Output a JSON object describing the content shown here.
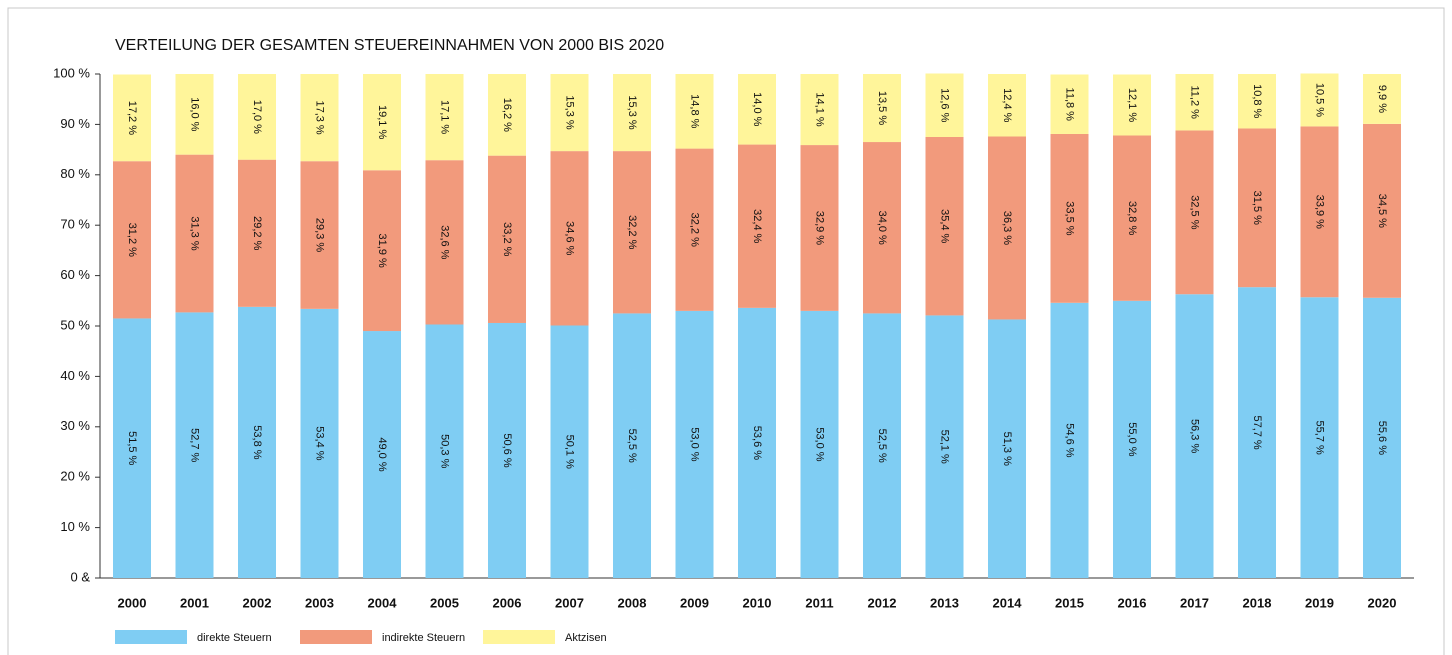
{
  "chart_data": {
    "type": "bar",
    "stacked": true,
    "title": "VERTEILUNG DER GESAMTEN STEUEREINNAHMEN VON 2000 BIS 2020",
    "categories": [
      "2000",
      "2001",
      "2002",
      "2003",
      "2004",
      "2005",
      "2006",
      "2007",
      "2008",
      "2009",
      "2010",
      "2011",
      "2012",
      "2013",
      "2014",
      "2015",
      "2016",
      "2017",
      "2018",
      "2019",
      "2020"
    ],
    "series": [
      {
        "name": "direkte Steuern",
        "color": "#7fcdf3",
        "values": [
          51.5,
          52.7,
          53.8,
          53.4,
          49.0,
          50.3,
          50.6,
          50.1,
          52.5,
          53.0,
          53.6,
          53.0,
          52.5,
          52.1,
          51.3,
          54.6,
          55.0,
          56.3,
          57.7,
          55.7,
          55.6
        ],
        "value_labels": [
          "51,5 %",
          "52,7 %",
          "53,8 %",
          "53,4 %",
          "49,0 %",
          "50,3 %",
          "50,6 %",
          "50,1 %",
          "52,5 %",
          "53,0 %",
          "53,6 %",
          "53,0 %",
          "52,5 %",
          "52,1 %",
          "51,3 %",
          "54,6 %",
          "55,0 %",
          "56,3 %",
          "57,7 %",
          "55,7 %",
          "55,6 %"
        ]
      },
      {
        "name": "indirekte Steuern",
        "color": "#f29a7c",
        "values": [
          31.2,
          31.3,
          29.2,
          29.3,
          31.9,
          32.6,
          33.2,
          34.6,
          32.2,
          32.2,
          32.4,
          32.9,
          34.0,
          35.4,
          36.3,
          33.5,
          32.8,
          32.5,
          31.5,
          33.9,
          34.5
        ],
        "value_labels": [
          "31,2 %",
          "31,3 %",
          "29,2 %",
          "29,3 %",
          "31,9 %",
          "32,6 %",
          "33,2 %",
          "34,6 %",
          "32,2 %",
          "32,2 %",
          "32,4 %",
          "32,9 %",
          "34,0 %",
          "35,4 %",
          "36,3 %",
          "33,5 %",
          "32,8 %",
          "32,5 %",
          "31,5 %",
          "33,9 %",
          "34,5 %"
        ]
      },
      {
        "name": "Aktzisen",
        "color": "#fff59a",
        "values": [
          17.2,
          16.0,
          17.0,
          17.3,
          19.1,
          17.1,
          16.2,
          15.3,
          15.3,
          14.8,
          14.0,
          14.1,
          13.5,
          12.6,
          12.4,
          11.8,
          12.1,
          11.2,
          10.8,
          10.5,
          9.9
        ],
        "value_labels": [
          "17,2 %",
          "16,0 %",
          "17,0 %",
          "17,3 %",
          "19,1 %",
          "17,1 %",
          "16,2 %",
          "15,3 %",
          "15,3 %",
          "14,8 %",
          "14,0 %",
          "14,1 %",
          "13,5 %",
          "12,6 %",
          "12,4 %",
          "11,8 %",
          "12,1 %",
          "11,2 %",
          "10,8 %",
          "10,5 %",
          "9,9 %"
        ]
      }
    ],
    "ylim": [
      0,
      100
    ],
    "yticks": [
      {
        "value": 0,
        "label": "0 &"
      },
      {
        "value": 10,
        "label": "10 %"
      },
      {
        "value": 20,
        "label": "20 %"
      },
      {
        "value": 30,
        "label": "30 %"
      },
      {
        "value": 40,
        "label": "40 %"
      },
      {
        "value": 50,
        "label": "50 %"
      },
      {
        "value": 60,
        "label": "60 %"
      },
      {
        "value": 70,
        "label": "70 %"
      },
      {
        "value": 80,
        "label": "80 %"
      },
      {
        "value": 90,
        "label": "90 %"
      },
      {
        "value": 100,
        "label": "100 %"
      }
    ],
    "legend": "bottom-left"
  }
}
